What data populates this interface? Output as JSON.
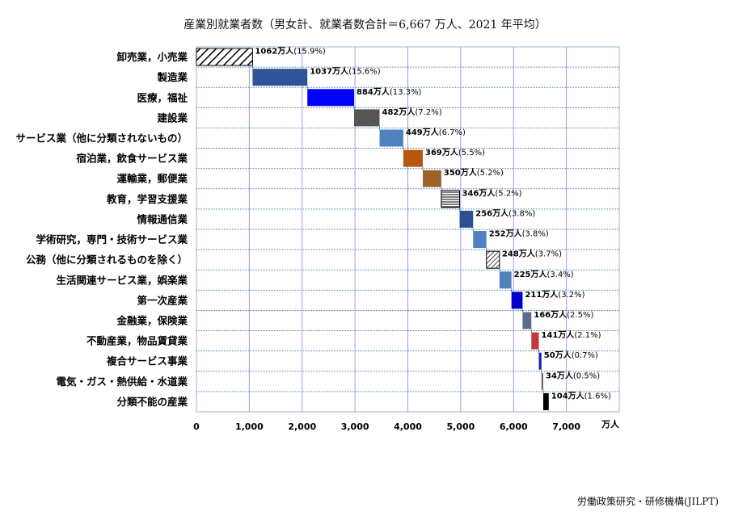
{
  "title": "産業別就業者数（男女計、就業者数合計＝6,667 万人、2021 年平均）",
  "source": "労働政策研究・研修機構(JILPT)",
  "chart_data": {
    "type": "bar",
    "subtype": "waterfall-horizontal",
    "categories": [
      "卸売業，小売業",
      "製造業",
      "医療，福祉",
      "建設業",
      "サービス業（他に分類されないもの）",
      "宿泊業，飲食サービス業",
      "運輸業，郵便業",
      "教育，学習支援業",
      "情報通信業",
      "学術研究，専門・技術サービス業",
      "公務（他に分類されるものを除く）",
      "生活関連サービス業，娯楽業",
      "第一次産業",
      "金融業，保険業",
      "不動産業，物品賃貸業",
      "複合サービス事業",
      "電気・ガス・熱供給・水道業",
      "分類不能の産業"
    ],
    "values": [
      1062,
      1037,
      884,
      482,
      449,
      369,
      350,
      346,
      256,
      252,
      248,
      225,
      211,
      166,
      141,
      50,
      34,
      104
    ],
    "percents": [
      "15.9%",
      "15.6%",
      "13.3%",
      "7.2%",
      "6.7%",
      "5.5%",
      "5.2%",
      "5.2%",
      "3.8%",
      "3.8%",
      "3.7%",
      "3.4%",
      "3.2%",
      "2.5%",
      "2.1%",
      "0.7%",
      "0.5%",
      "1.6%"
    ],
    "value_unit": "万人",
    "data_labels": [
      {
        "value": "1062万人",
        "pct": "(15.9%)"
      },
      {
        "value": "1037万人",
        "pct": "(15.6%)"
      },
      {
        "value": "884万人",
        "pct": "(13.3%)"
      },
      {
        "value": "482万人",
        "pct": "(7.2%)"
      },
      {
        "value": "449万人",
        "pct": "(6.7%)"
      },
      {
        "value": "369万人",
        "pct": "(5.5%)"
      },
      {
        "value": "350万人",
        "pct": "(5.2%)"
      },
      {
        "value": "346万人",
        "pct": "(5.2%)"
      },
      {
        "value": "256万人",
        "pct": "(3.8%)"
      },
      {
        "value": "252万人",
        "pct": "(3.8%)"
      },
      {
        "value": "248万人",
        "pct": "(3.7%)"
      },
      {
        "value": "225万人",
        "pct": "(3.4%)"
      },
      {
        "value": "211万人",
        "pct": "(3.2%)"
      },
      {
        "value": "166万人",
        "pct": "(2.5%)"
      },
      {
        "value": "141万人",
        "pct": "(2.1%)"
      },
      {
        "value": "50万人",
        "pct": "(0.7%)"
      },
      {
        "value": "34万人",
        "pct": "(0.5%)"
      },
      {
        "value": "104万人",
        "pct": "(1.6%)"
      }
    ],
    "fills": [
      "hatch-diagonal-bold",
      "#2f5597",
      "#0000ff",
      "#555555",
      "#4f81bd",
      "#b8560e",
      "#a0622d",
      "hatch-horizontal",
      "#2e4e8f",
      "#4f81bd",
      "hatch-diagonal",
      "#4f81bd",
      "#0000cc",
      "#5a6e8c",
      "#c0393b",
      "#1f1f9f",
      "#666666",
      "#000000"
    ],
    "xlim": [
      0,
      8000
    ],
    "xticks": [
      0,
      1000,
      2000,
      3000,
      4000,
      5000,
      6000,
      7000
    ],
    "xtick_labels": [
      "0",
      "1,000",
      "2,000",
      "3,000",
      "4,000",
      "5,000",
      "6,000",
      "7,000"
    ],
    "xlabel": "万人",
    "ylabel": "",
    "grid": true
  }
}
